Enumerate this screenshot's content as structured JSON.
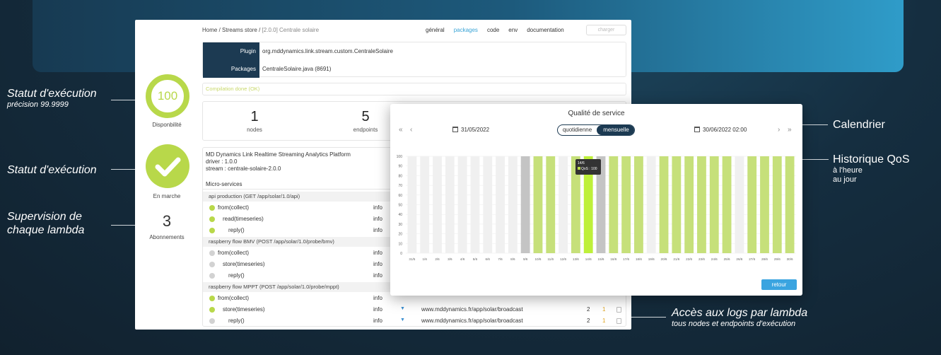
{
  "annotations": {
    "statut1_title": "Statut d'exécution",
    "statut1_sub": "précision 99.9999",
    "statut2_title": "Statut d'exécution",
    "supervision_l1": "Supervision de",
    "supervision_l2": "chaque lambda",
    "calendrier": "Calendrier",
    "historique_title": "Historique QoS",
    "historique_l1": "à l'heure",
    "historique_l2": "au jour",
    "logs_title": "Accès aux logs par lambda",
    "logs_sub": "tous nodes et endpoints d'exécution"
  },
  "breadcrumb": {
    "home": "Home",
    "sep1": "/",
    "store": "Streams store",
    "sep2": "/",
    "current": "[2.0.0] Centrale solaire"
  },
  "nav": {
    "general": "général",
    "packages": "packages",
    "code": "code",
    "env": "env",
    "documentation": "documentation",
    "charger": "charger"
  },
  "plugin": {
    "plugin_label": "Plugin",
    "plugin_value": "org.mddynamics.link.stream.custom.CentraleSolaire",
    "packages_label": "Packages",
    "packages_value": "CentraleSolaire.java (8691)"
  },
  "compilation": "Compilation done (OK)",
  "stats": {
    "nodes_value": "1",
    "nodes_label": "nodes",
    "endpoints_value": "5",
    "endpoints_label": "endpoints"
  },
  "left": {
    "availability_value": "100",
    "availability_label": "Disponbilité",
    "status_label": "En marche",
    "subscriptions_value": "3",
    "subscriptions_label": "Abonnements"
  },
  "platform": {
    "line1": "MD Dynamics Link Realtime Streaming Analytics Platform",
    "line2": "driver : 1.0.0",
    "line3": "stream : centrale-solaire-2.0.0"
  },
  "microservices_title": "Micro-services",
  "groups": [
    {
      "title": "api production (GET /app/solar/1.0/api)",
      "rows": [
        {
          "name": "from(collect)",
          "status": "green",
          "info": "info"
        },
        {
          "name": "read(timeseries)",
          "status": "green",
          "info": "info"
        },
        {
          "name": "reply()",
          "status": "green",
          "info": "info"
        }
      ]
    },
    {
      "title": "raspberry flow BMV (POST /app/solar/1.0/probe/bmv)",
      "rows": [
        {
          "name": "from(collect)",
          "status": "grey",
          "info": "info"
        },
        {
          "name": "store(timeseries)",
          "status": "grey",
          "info": "info"
        },
        {
          "name": "reply()",
          "status": "grey",
          "info": "info"
        }
      ]
    },
    {
      "title": "raspberry flow MPPT (POST /app/solar/1.0/probe/mppt)",
      "rows": [
        {
          "name": "from(collect)",
          "status": "green",
          "info": "info"
        },
        {
          "name": "store(timeseries)",
          "status": "green",
          "info": "info",
          "url": "www.mddynamics.fr/app/solar/broadcast",
          "c1": "2",
          "c2": "1"
        },
        {
          "name": "reply()",
          "status": "grey",
          "info": "info",
          "url": "www.mddynamics.fr/app/solar/broadcast",
          "c1": "2",
          "c2": "1"
        }
      ]
    }
  ],
  "modal": {
    "title": "Qualité de service",
    "nav_first": "«",
    "nav_prev": "‹",
    "nav_next": "›",
    "nav_last": "»",
    "date_from": "31/05/2022",
    "date_to": "30/06/2022 02:00",
    "toggle_daily": "quotidienne",
    "toggle_monthly": "mensuelle",
    "retour": "retour",
    "tooltip_date": "14/6",
    "tooltip_value": "QoS : 100"
  },
  "chart_data": {
    "type": "bar",
    "title": "",
    "ylim": [
      0,
      100
    ],
    "yticks": [
      0,
      10,
      20,
      30,
      40,
      50,
      60,
      70,
      80,
      90,
      100
    ],
    "categories": [
      "31/5",
      "1/6",
      "2/6",
      "3/6",
      "4/6",
      "5/6",
      "6/6",
      "7/6",
      "8/6",
      "9/6",
      "10/6",
      "11/6",
      "12/6",
      "13/6",
      "14/6",
      "15/6",
      "16/6",
      "17/6",
      "18/6",
      "19/6",
      "20/6",
      "21/6",
      "22/6",
      "23/6",
      "24/6",
      "25/6",
      "26/6",
      "27/6",
      "28/6",
      "29/6",
      "30/6"
    ],
    "values": [
      100,
      100,
      100,
      100,
      100,
      100,
      100,
      100,
      100,
      100,
      100,
      100,
      100,
      100,
      100,
      100,
      100,
      100,
      100,
      100,
      100,
      100,
      100,
      100,
      100,
      100,
      100,
      100,
      100,
      100,
      100
    ],
    "status": [
      "none",
      "none",
      "none",
      "none",
      "none",
      "none",
      "none",
      "none",
      "none",
      "grey",
      "ok",
      "ok",
      "none",
      "ok",
      "selected",
      "grey",
      "ok",
      "ok",
      "ok",
      "none",
      "ok",
      "ok",
      "ok",
      "ok",
      "ok",
      "ok",
      "none",
      "ok",
      "ok",
      "ok",
      "ok"
    ],
    "colors": {
      "ok": "#c6e07a",
      "selected": "#bef03a",
      "grey": "#c4c4c4",
      "none": "#f0f0f0"
    }
  }
}
